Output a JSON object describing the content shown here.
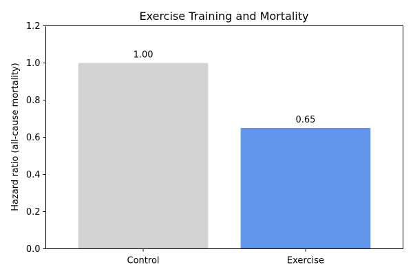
{
  "chart_data": {
    "type": "bar",
    "title": "Exercise Training and Mortality",
    "xlabel": "",
    "ylabel": "Hazard ratio (all-cause mortality)",
    "categories": [
      "Control",
      "Exercise"
    ],
    "values": [
      1.0,
      0.65
    ],
    "data_labels": [
      "1.00",
      "0.65"
    ],
    "colors": [
      "#d3d3d3",
      "#6495ed"
    ],
    "ylim": [
      0,
      1.2
    ],
    "yticks": [
      "0.0",
      "0.2",
      "0.4",
      "0.6",
      "0.8",
      "1.0",
      "1.2"
    ],
    "grid": false,
    "legend": "none"
  }
}
